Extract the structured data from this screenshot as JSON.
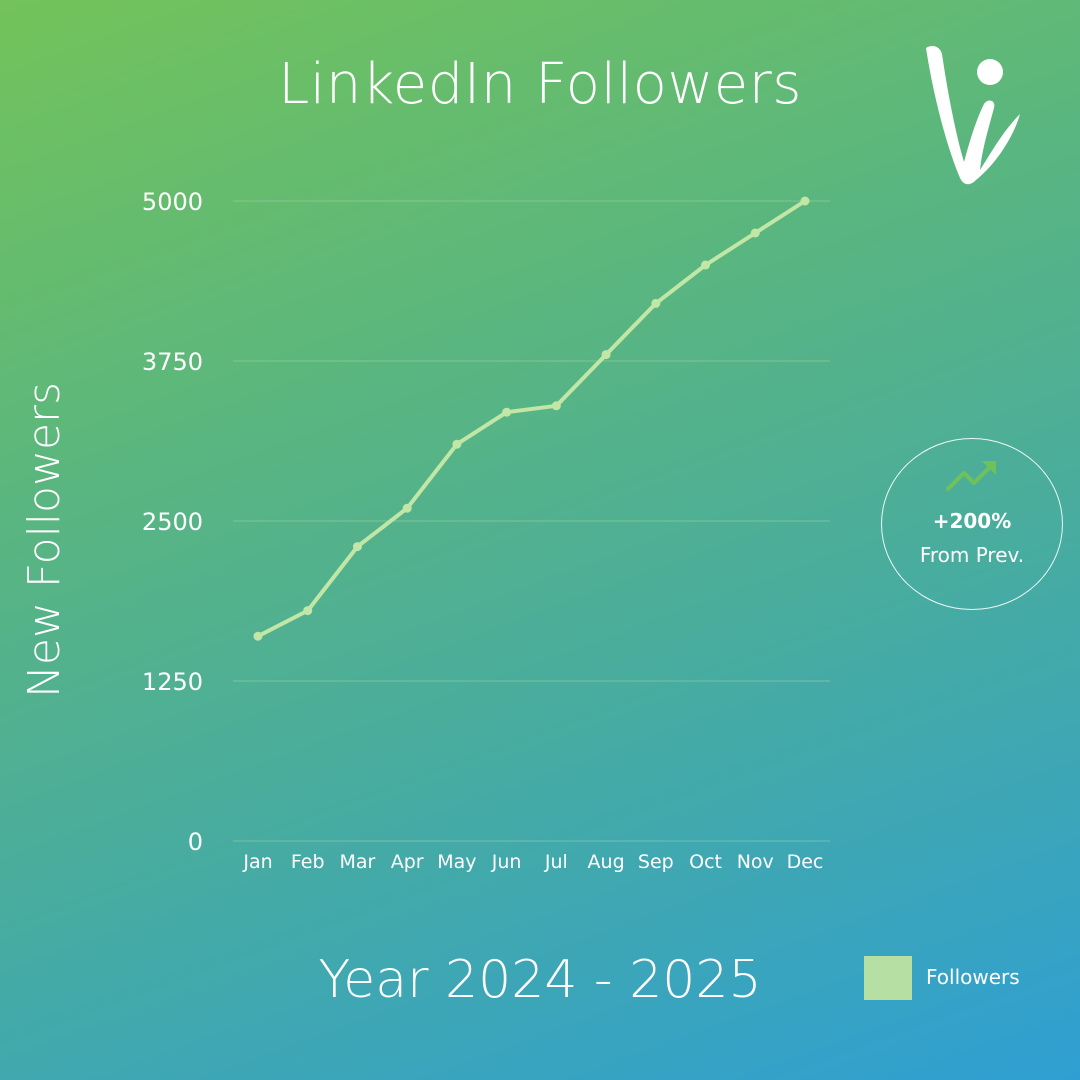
{
  "chart_data": {
    "type": "line",
    "title": "LinkedIn Followers",
    "xlabel": "Year 2024 - 2025",
    "ylabel": "New Followers",
    "categories": [
      "Jan",
      "Feb",
      "Mar",
      "Apr",
      "May",
      "Jun",
      "Jul",
      "Aug",
      "Sep",
      "Oct",
      "Nov",
      "Dec"
    ],
    "series": [
      {
        "name": "Followers",
        "values": [
          1600,
          1800,
          2300,
          2600,
          3100,
          3350,
          3400,
          3800,
          4200,
          4500,
          4750,
          5000
        ]
      }
    ],
    "ylim": [
      0,
      5000
    ],
    "yticks": [
      "0",
      "1250",
      "2500",
      "3750",
      "5000"
    ],
    "grid": true,
    "legend_position": "bottom-right",
    "line_color": "#c2e6a6",
    "grid_color": "#9fd6a8"
  },
  "badge": {
    "value": "+200%",
    "caption": "From Prev.",
    "icon": "trend-up-arrow-icon",
    "icon_color": "#6fc25a"
  },
  "logo": {
    "icon": "brand-logo-icon"
  },
  "legend": {
    "label": "Followers",
    "color": "#b6dfa3"
  }
}
